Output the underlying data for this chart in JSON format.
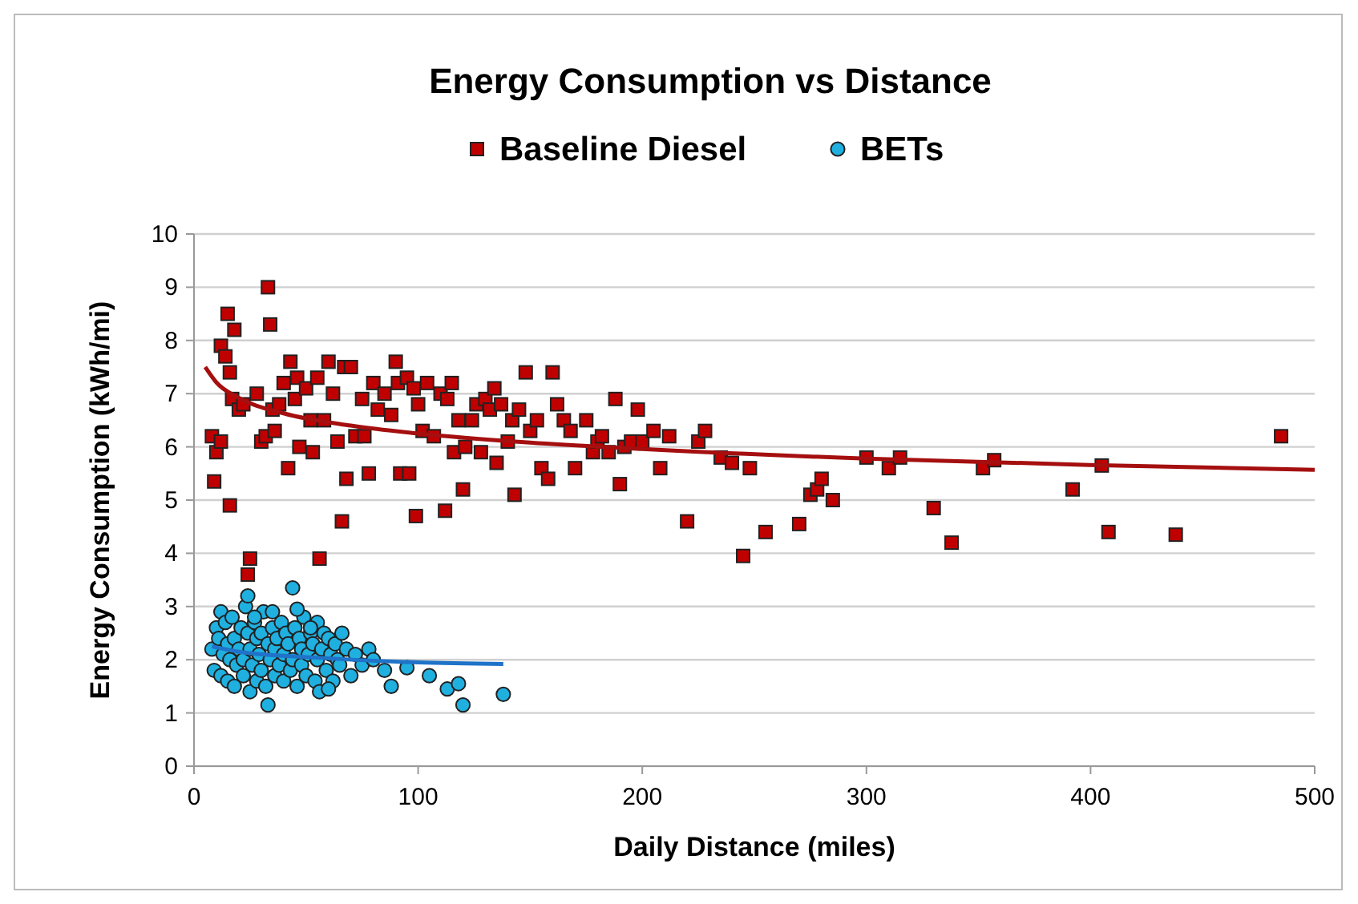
{
  "chart_data": {
    "type": "scatter",
    "title": "Energy Consumption vs Distance",
    "xlabel": "Daily Distance (miles)",
    "ylabel": "Energy Consumption (kWh/mi)",
    "xlim": [
      0,
      500
    ],
    "xticks": [
      0,
      100,
      200,
      300,
      400,
      500
    ],
    "ylim": [
      0,
      10
    ],
    "yticks": [
      0,
      1,
      2,
      3,
      4,
      5,
      6,
      7,
      8,
      9,
      10
    ],
    "grid": "y",
    "legend": "top",
    "series": [
      {
        "name": "Baseline Diesel",
        "color": "#c00000",
        "marker": "square",
        "x": [
          8,
          10,
          9,
          12,
          12,
          14,
          15,
          16,
          17,
          16,
          18,
          20,
          22,
          25,
          24,
          28,
          30,
          32,
          33,
          34,
          35,
          36,
          38,
          40,
          42,
          43,
          45,
          46,
          47,
          50,
          52,
          53,
          55,
          56,
          58,
          60,
          62,
          64,
          66,
          67,
          68,
          70,
          72,
          75,
          76,
          78,
          80,
          82,
          85,
          88,
          90,
          91,
          92,
          95,
          96,
          98,
          99,
          100,
          102,
          104,
          107,
          110,
          112,
          113,
          115,
          116,
          118,
          120,
          121,
          124,
          126,
          128,
          130,
          132,
          134,
          135,
          137,
          140,
          142,
          143,
          145,
          148,
          150,
          153,
          155,
          158,
          160,
          162,
          165,
          168,
          170,
          175,
          178,
          180,
          182,
          185,
          188,
          190,
          192,
          195,
          198,
          200,
          205,
          208,
          212,
          220,
          225,
          228,
          235,
          240,
          245,
          248,
          255,
          270,
          275,
          278,
          280,
          285,
          300,
          310,
          315,
          330,
          338,
          352,
          357,
          392,
          405,
          408,
          438,
          485
        ],
        "values": [
          6.2,
          5.9,
          5.35,
          6.1,
          7.9,
          7.7,
          8.5,
          7.4,
          6.9,
          4.9,
          8.2,
          6.7,
          6.8,
          3.9,
          3.6,
          7.0,
          6.1,
          6.2,
          9.0,
          8.3,
          6.7,
          6.3,
          6.8,
          7.2,
          5.6,
          7.6,
          6.9,
          7.3,
          6.0,
          7.1,
          6.5,
          5.9,
          7.3,
          3.9,
          6.5,
          7.6,
          7.0,
          6.1,
          4.6,
          7.5,
          5.4,
          7.5,
          6.2,
          6.9,
          6.2,
          5.5,
          7.2,
          6.7,
          7.0,
          6.6,
          7.6,
          7.2,
          5.5,
          7.3,
          5.5,
          7.1,
          4.7,
          6.8,
          6.3,
          7.2,
          6.2,
          7.0,
          4.8,
          6.9,
          7.2,
          5.9,
          6.5,
          5.2,
          6.0,
          6.5,
          6.8,
          5.9,
          6.9,
          6.7,
          7.1,
          5.7,
          6.8,
          6.1,
          6.5,
          5.1,
          6.7,
          7.4,
          6.3,
          6.5,
          5.6,
          5.4,
          7.4,
          6.8,
          6.5,
          6.3,
          5.6,
          6.5,
          5.9,
          6.1,
          6.2,
          5.9,
          6.9,
          5.3,
          6.0,
          6.1,
          6.7,
          6.1,
          6.3,
          5.6,
          6.2,
          4.6,
          6.1,
          6.3,
          5.8,
          5.7,
          3.95,
          5.6,
          4.4,
          4.55,
          5.1,
          5.2,
          5.4,
          5.0,
          5.8,
          5.6,
          5.8,
          4.85,
          4.2,
          5.6,
          5.75,
          5.2,
          5.65,
          4.4,
          4.35,
          6.2
        ]
      },
      {
        "name": "BETs",
        "color": "#1fb0e0",
        "marker": "circle",
        "x": [
          8,
          9,
          10,
          11,
          12,
          12,
          13,
          14,
          15,
          15,
          16,
          17,
          18,
          18,
          19,
          20,
          21,
          22,
          22,
          23,
          24,
          25,
          25,
          26,
          27,
          28,
          28,
          29,
          30,
          30,
          31,
          32,
          33,
          33,
          34,
          35,
          36,
          36,
          37,
          38,
          39,
          40,
          40,
          41,
          42,
          43,
          44,
          44,
          45,
          46,
          47,
          48,
          48,
          49,
          50,
          51,
          52,
          53,
          54,
          55,
          55,
          56,
          57,
          58,
          59,
          60,
          61,
          62,
          63,
          64,
          65,
          66,
          68,
          70,
          72,
          75,
          78,
          80,
          85,
          88,
          95,
          105,
          113,
          118,
          120,
          138,
          24,
          27,
          35,
          46,
          52,
          60
        ],
        "values": [
          2.2,
          1.8,
          2.6,
          2.4,
          2.9,
          1.7,
          2.1,
          2.7,
          1.6,
          2.3,
          2.0,
          2.8,
          1.5,
          2.4,
          1.9,
          2.2,
          2.6,
          1.7,
          2.0,
          3.0,
          2.5,
          1.4,
          2.2,
          1.9,
          2.7,
          1.6,
          2.4,
          2.1,
          1.8,
          2.5,
          2.9,
          1.5,
          1.15,
          2.3,
          2.0,
          2.6,
          1.7,
          2.2,
          2.4,
          1.9,
          2.7,
          1.6,
          2.1,
          2.5,
          2.3,
          1.8,
          3.35,
          2.0,
          2.6,
          1.5,
          2.4,
          2.2,
          1.9,
          2.8,
          1.7,
          2.1,
          2.5,
          2.3,
          1.6,
          2.0,
          2.7,
          1.4,
          2.2,
          2.5,
          1.8,
          2.4,
          2.1,
          1.6,
          2.3,
          2.0,
          1.9,
          2.5,
          2.2,
          1.7,
          2.1,
          1.9,
          2.2,
          2.0,
          1.8,
          1.5,
          1.85,
          1.7,
          1.45,
          1.55,
          1.15,
          1.35,
          3.2,
          2.8,
          2.9,
          2.95,
          2.6,
          1.45
        ]
      },
      {
        "type": "line",
        "color": "#a50f0f",
        "marker": "none",
        "x": [
          5,
          10,
          20,
          40,
          70,
          100,
          150,
          200,
          300,
          400,
          500
        ],
        "values": [
          7.5,
          7.21,
          6.92,
          6.63,
          6.4,
          6.25,
          6.08,
          5.96,
          5.78,
          5.66,
          5.57
        ]
      },
      {
        "type": "line",
        "color": "#1f73c8",
        "marker": "none",
        "x": [
          8,
          20,
          50,
          100,
          138
        ],
        "values": [
          2.25,
          2.15,
          2.05,
          1.95,
          1.92
        ]
      }
    ]
  }
}
